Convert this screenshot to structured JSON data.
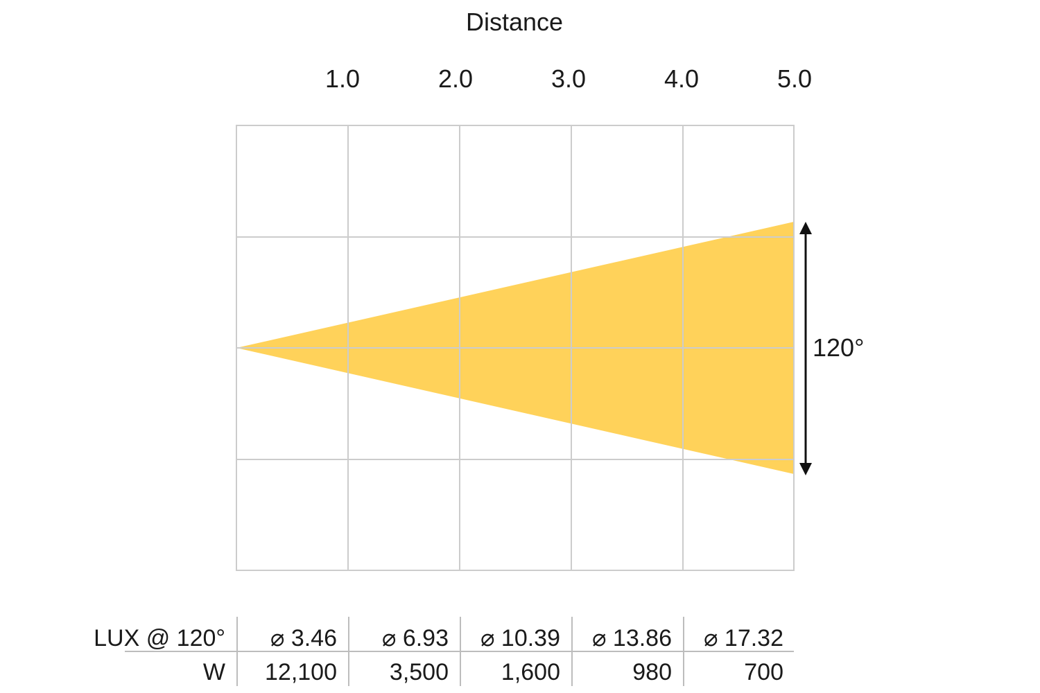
{
  "title": "Distance",
  "distance_ticks": [
    "1.0",
    "2.0",
    "3.0",
    "4.0",
    "5.0"
  ],
  "beam": {
    "angle_label": "120°",
    "fill_color": "#ffd25a",
    "arrow_color": "#111111",
    "grid_color": "#cccccc"
  },
  "table": {
    "rows": [
      {
        "label": "LUX @ 120°",
        "cells": [
          "⌀ 3.46",
          "⌀ 6.93",
          "⌀ 10.39",
          "⌀ 13.86",
          "⌀ 17.32"
        ]
      },
      {
        "label": "W",
        "cells": [
          "12,100",
          "3,500",
          "1,600",
          "980",
          "700"
        ]
      }
    ]
  }
}
